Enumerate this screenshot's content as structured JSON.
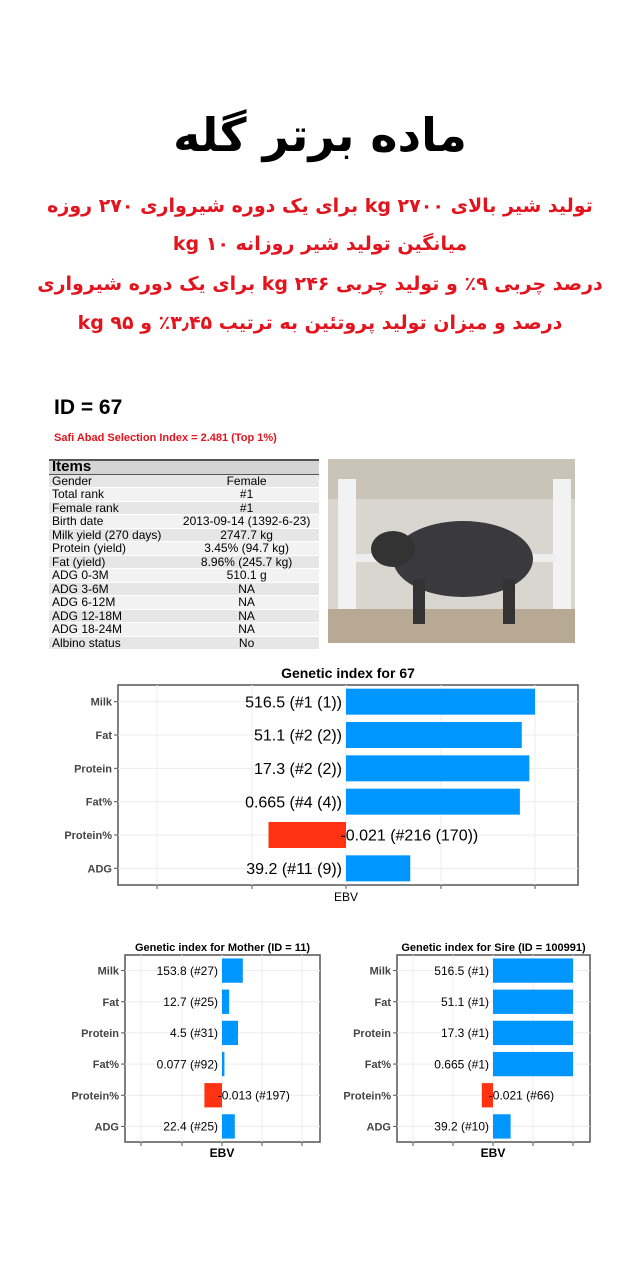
{
  "header": {
    "title": "ماده برتر گله",
    "lines": [
      "تولید شیر بالای kg ۲۷۰۰ برای یک دوره شیرواری ۲۷۰ روزه",
      "میانگین تولید شیر روزانه kg ۱۰",
      "درصد چربی ۹٪ و تولید چربی kg ۲۴۶ برای یک دوره شیرواری",
      "درصد و میزان تولید پروتئین به ترتیب ۳٫۴۵٪ و kg ۹۵"
    ]
  },
  "animal": {
    "id_label": "ID = 67",
    "selection_index": "Safi Abad Selection Index = 2.481 (Top 1%)"
  },
  "items": {
    "header": "Items",
    "rows": [
      [
        "Gender",
        "Female"
      ],
      [
        "Total rank",
        "#1"
      ],
      [
        "Female rank",
        "#1"
      ],
      [
        "Birth date",
        "2013-09-14 (1392-6-23)"
      ],
      [
        "Milk yield (270 days)",
        "2747.7 kg"
      ],
      [
        "Protein (yield)",
        "3.45% (94.7 kg)"
      ],
      [
        "Fat (yield)",
        "8.96% (245.7 kg)"
      ],
      [
        "ADG 0-3M",
        "510.1 g"
      ],
      [
        "ADG 3-6M",
        "NA"
      ],
      [
        "ADG 6-12M",
        "NA"
      ],
      [
        "ADG 12-18M",
        "NA"
      ],
      [
        "ADG 18-24M",
        "NA"
      ],
      [
        "Albino status",
        "No"
      ]
    ]
  },
  "colors": {
    "positive": "#0096ff",
    "negative": "#ff3312",
    "title_red": "#e3141e"
  },
  "chart_data": [
    {
      "type": "bar",
      "orientation": "horizontal",
      "title": "Genetic index for 67",
      "xlabel": "EBV",
      "ylabel": "",
      "categories": [
        "Milk",
        "Fat",
        "Protein",
        "Fat%",
        "Protein%",
        "ADG"
      ],
      "values": [
        516.5,
        51.1,
        17.3,
        0.665,
        -0.021,
        39.2
      ],
      "relative_bar": [
        1.0,
        0.93,
        0.97,
        0.92,
        -0.41,
        0.34
      ],
      "labels": [
        "516.5 (#1 (1))",
        "51.1 (#2 (2))",
        "17.3 (#2 (2))",
        "0.665 (#4 (4))",
        "-0.021 (#216 (170))",
        "39.2 (#11 (9))"
      ],
      "grid": true
    },
    {
      "type": "bar",
      "orientation": "horizontal",
      "title": "Genetic index for Mother (ID = 11)",
      "xlabel": "EBV",
      "ylabel": "",
      "categories": [
        "Milk",
        "Fat",
        "Protein",
        "Fat%",
        "Protein%",
        "ADG"
      ],
      "values": [
        153.8,
        12.7,
        4.5,
        0.077,
        -0.013,
        22.4
      ],
      "relative_bar": [
        0.26,
        0.09,
        0.2,
        0.03,
        -0.22,
        0.16
      ],
      "labels": [
        "153.8 (#27)",
        "12.7 (#25)",
        "4.5 (#31)",
        "0.077 (#92)",
        "-0.013 (#197)",
        "22.4 (#25)"
      ],
      "grid": true
    },
    {
      "type": "bar",
      "orientation": "horizontal",
      "title": "Genetic index for Sire (ID = 100991)",
      "xlabel": "EBV",
      "ylabel": "",
      "categories": [
        "Milk",
        "Fat",
        "Protein",
        "Fat%",
        "Protein%",
        "ADG"
      ],
      "values": [
        516.5,
        51.1,
        17.3,
        0.665,
        -0.021,
        39.2
      ],
      "relative_bar": [
        1.0,
        1.0,
        1.0,
        1.0,
        -0.14,
        0.22
      ],
      "labels": [
        "516.5 (#1)",
        "51.1 (#1)",
        "17.3 (#1)",
        "0.665 (#1)",
        "-0.021 (#66)",
        "39.2 (#10)"
      ],
      "grid": true
    }
  ]
}
